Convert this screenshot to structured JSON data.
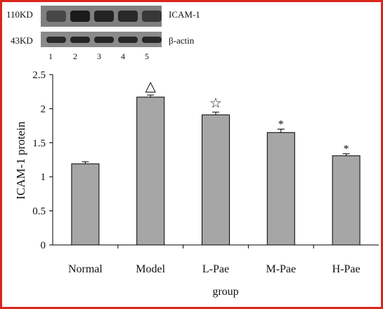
{
  "blot": {
    "top_marker": "110KD",
    "top_protein": "ICAM-1",
    "bottom_marker": "43KD",
    "bottom_protein": "β-actin",
    "lanes": [
      "1",
      "2",
      "3",
      "4",
      "5"
    ],
    "top_band_intensity": [
      0.55,
      1.0,
      0.9,
      0.85,
      0.7
    ],
    "bottom_band_intensity": [
      0.85,
      0.9,
      0.9,
      0.88,
      0.88
    ]
  },
  "chart_data": {
    "type": "bar",
    "categories": [
      "Normal",
      "Model",
      "L-Pae",
      "M-Pae",
      "H-Pae"
    ],
    "values": [
      1.19,
      2.17,
      1.91,
      1.65,
      1.31
    ],
    "errors": [
      0.03,
      0.03,
      0.04,
      0.05,
      0.03
    ],
    "annotations": [
      "",
      "△",
      "☆",
      "*",
      "*"
    ],
    "xlabel": "group",
    "ylabel": "ICAM-1 protein",
    "ylim": [
      0,
      2.5
    ],
    "yticks": [
      "0",
      "0.5",
      "1",
      "1.5",
      "2",
      "2.5"
    ],
    "bar_color": "#a6a6a6",
    "grid": false
  },
  "colors": {
    "border": "#d9261c",
    "blot_background": "#7f7f7f",
    "band": "#1a1a1a"
  }
}
